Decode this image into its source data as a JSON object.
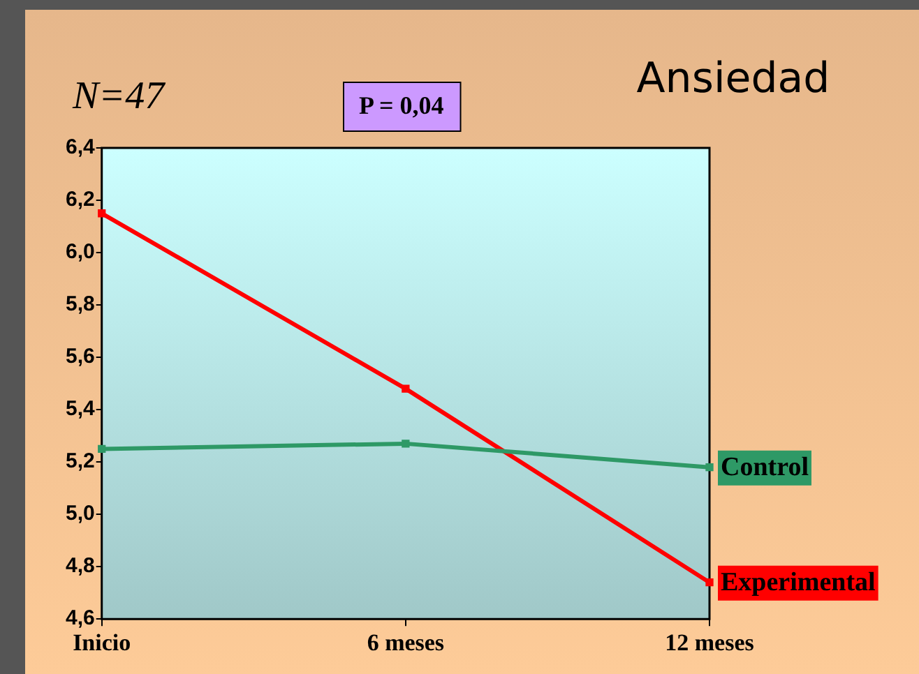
{
  "chart_data": {
    "type": "line",
    "title": "Ansiedad",
    "annotations": [
      "N=47",
      "P = 0,04"
    ],
    "categories": [
      "Inicio",
      "6 meses",
      "12 meses"
    ],
    "series": [
      {
        "name": "Control",
        "color": "#2e9966",
        "values": [
          5.25,
          5.27,
          5.18
        ]
      },
      {
        "name": "Experimental",
        "color": "#ff0000",
        "values": [
          6.15,
          5.48,
          4.74
        ]
      }
    ],
    "ylim": [
      4.6,
      6.4
    ],
    "yticks": [
      {
        "value": 4.6,
        "label": "4,6"
      },
      {
        "value": 4.8,
        "label": "4,8"
      },
      {
        "value": 5.0,
        "label": "5,0"
      },
      {
        "value": 5.2,
        "label": "5,2"
      },
      {
        "value": 5.4,
        "label": "5,4"
      },
      {
        "value": 5.6,
        "label": "5,6"
      },
      {
        "value": 5.8,
        "label": "5,8"
      },
      {
        "value": 6.0,
        "label": "6,0"
      },
      {
        "value": 6.2,
        "label": "6,2"
      },
      {
        "value": 6.4,
        "label": "6,4"
      }
    ],
    "grid": false,
    "legend": false,
    "marker": "square",
    "line_style": "solid"
  }
}
